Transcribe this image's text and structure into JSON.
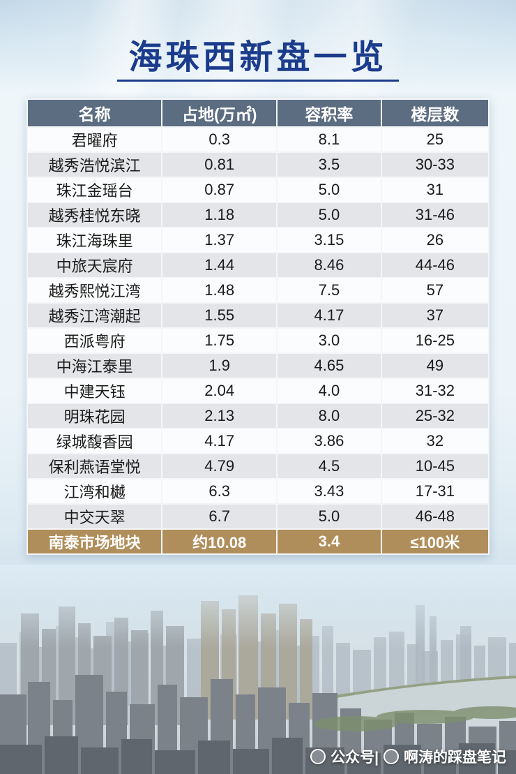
{
  "page": {
    "title": "海珠西新盘一览"
  },
  "table": {
    "headers": [
      "名称",
      "占地(万㎡)",
      "容积率",
      "楼层数"
    ],
    "rows": [
      [
        "君曜府",
        "0.3",
        "8.1",
        "25"
      ],
      [
        "越秀浩悦滨江",
        "0.81",
        "3.5",
        "30-33"
      ],
      [
        "珠江金瑶台",
        "0.87",
        "5.0",
        "31"
      ],
      [
        "越秀桂悦东晓",
        "1.18",
        "5.0",
        "31-46"
      ],
      [
        "珠江海珠里",
        "1.37",
        "3.15",
        "26"
      ],
      [
        "中旅天宸府",
        "1.44",
        "8.46",
        "44-46"
      ],
      [
        "越秀熙悦江湾",
        "1.48",
        "7.5",
        "57"
      ],
      [
        "越秀江湾潮起",
        "1.55",
        "4.17",
        "37"
      ],
      [
        "西派粤府",
        "1.75",
        "3.0",
        "16-25"
      ],
      [
        "中海江泰里",
        "1.9",
        "4.65",
        "49"
      ],
      [
        "中建天钰",
        "2.04",
        "4.0",
        "31-32"
      ],
      [
        "明珠花园",
        "2.13",
        "8.0",
        "25-32"
      ],
      [
        "绿城馥香园",
        "4.17",
        "3.86",
        "32"
      ],
      [
        "保利燕语堂悦",
        "4.79",
        "4.5",
        "10-45"
      ],
      [
        "江湾和樾",
        "6.3",
        "3.43",
        "17-31"
      ],
      [
        "中交天翠",
        "6.7",
        "5.0",
        "46-48"
      ]
    ],
    "highlight": [
      "南泰市场地块",
      "约10.08",
      "3.4",
      "≤100米"
    ]
  },
  "watermark": {
    "prefix": "公众号|",
    "account": "啊涛的踩盘笔记"
  },
  "colors": {
    "title": "#1b3b8c",
    "header_bg": "#5c6d81",
    "row_bg": "#fbfcfd",
    "row_alt_bg": "#e4e5e8",
    "highlight_bg": "#b08e5b"
  },
  "chart_data": {
    "type": "table",
    "title": "海珠西新盘一览",
    "columns": [
      "名称",
      "占地(万㎡)",
      "容积率",
      "楼层数"
    ],
    "rows": [
      [
        "君曜府",
        0.3,
        8.1,
        "25"
      ],
      [
        "越秀浩悦滨江",
        0.81,
        3.5,
        "30-33"
      ],
      [
        "珠江金瑶台",
        0.87,
        5.0,
        "31"
      ],
      [
        "越秀桂悦东晓",
        1.18,
        5.0,
        "31-46"
      ],
      [
        "珠江海珠里",
        1.37,
        3.15,
        "26"
      ],
      [
        "中旅天宸府",
        1.44,
        8.46,
        "44-46"
      ],
      [
        "越秀熙悦江湾",
        1.48,
        7.5,
        "57"
      ],
      [
        "越秀江湾潮起",
        1.55,
        4.17,
        "37"
      ],
      [
        "西派粤府",
        1.75,
        3.0,
        "16-25"
      ],
      [
        "中海江泰里",
        1.9,
        4.65,
        "49"
      ],
      [
        "中建天钰",
        2.04,
        4.0,
        "31-32"
      ],
      [
        "明珠花园",
        2.13,
        8.0,
        "25-32"
      ],
      [
        "绿城馥香园",
        4.17,
        3.86,
        "32"
      ],
      [
        "保利燕语堂悦",
        4.79,
        4.5,
        "10-45"
      ],
      [
        "江湾和樾",
        6.3,
        3.43,
        "17-31"
      ],
      [
        "中交天翠",
        6.7,
        5.0,
        "46-48"
      ],
      [
        "南泰市场地块",
        "约10.08",
        3.4,
        "≤100米"
      ]
    ],
    "notes": "最后一行(南泰市场地块)为金色高亮行"
  }
}
